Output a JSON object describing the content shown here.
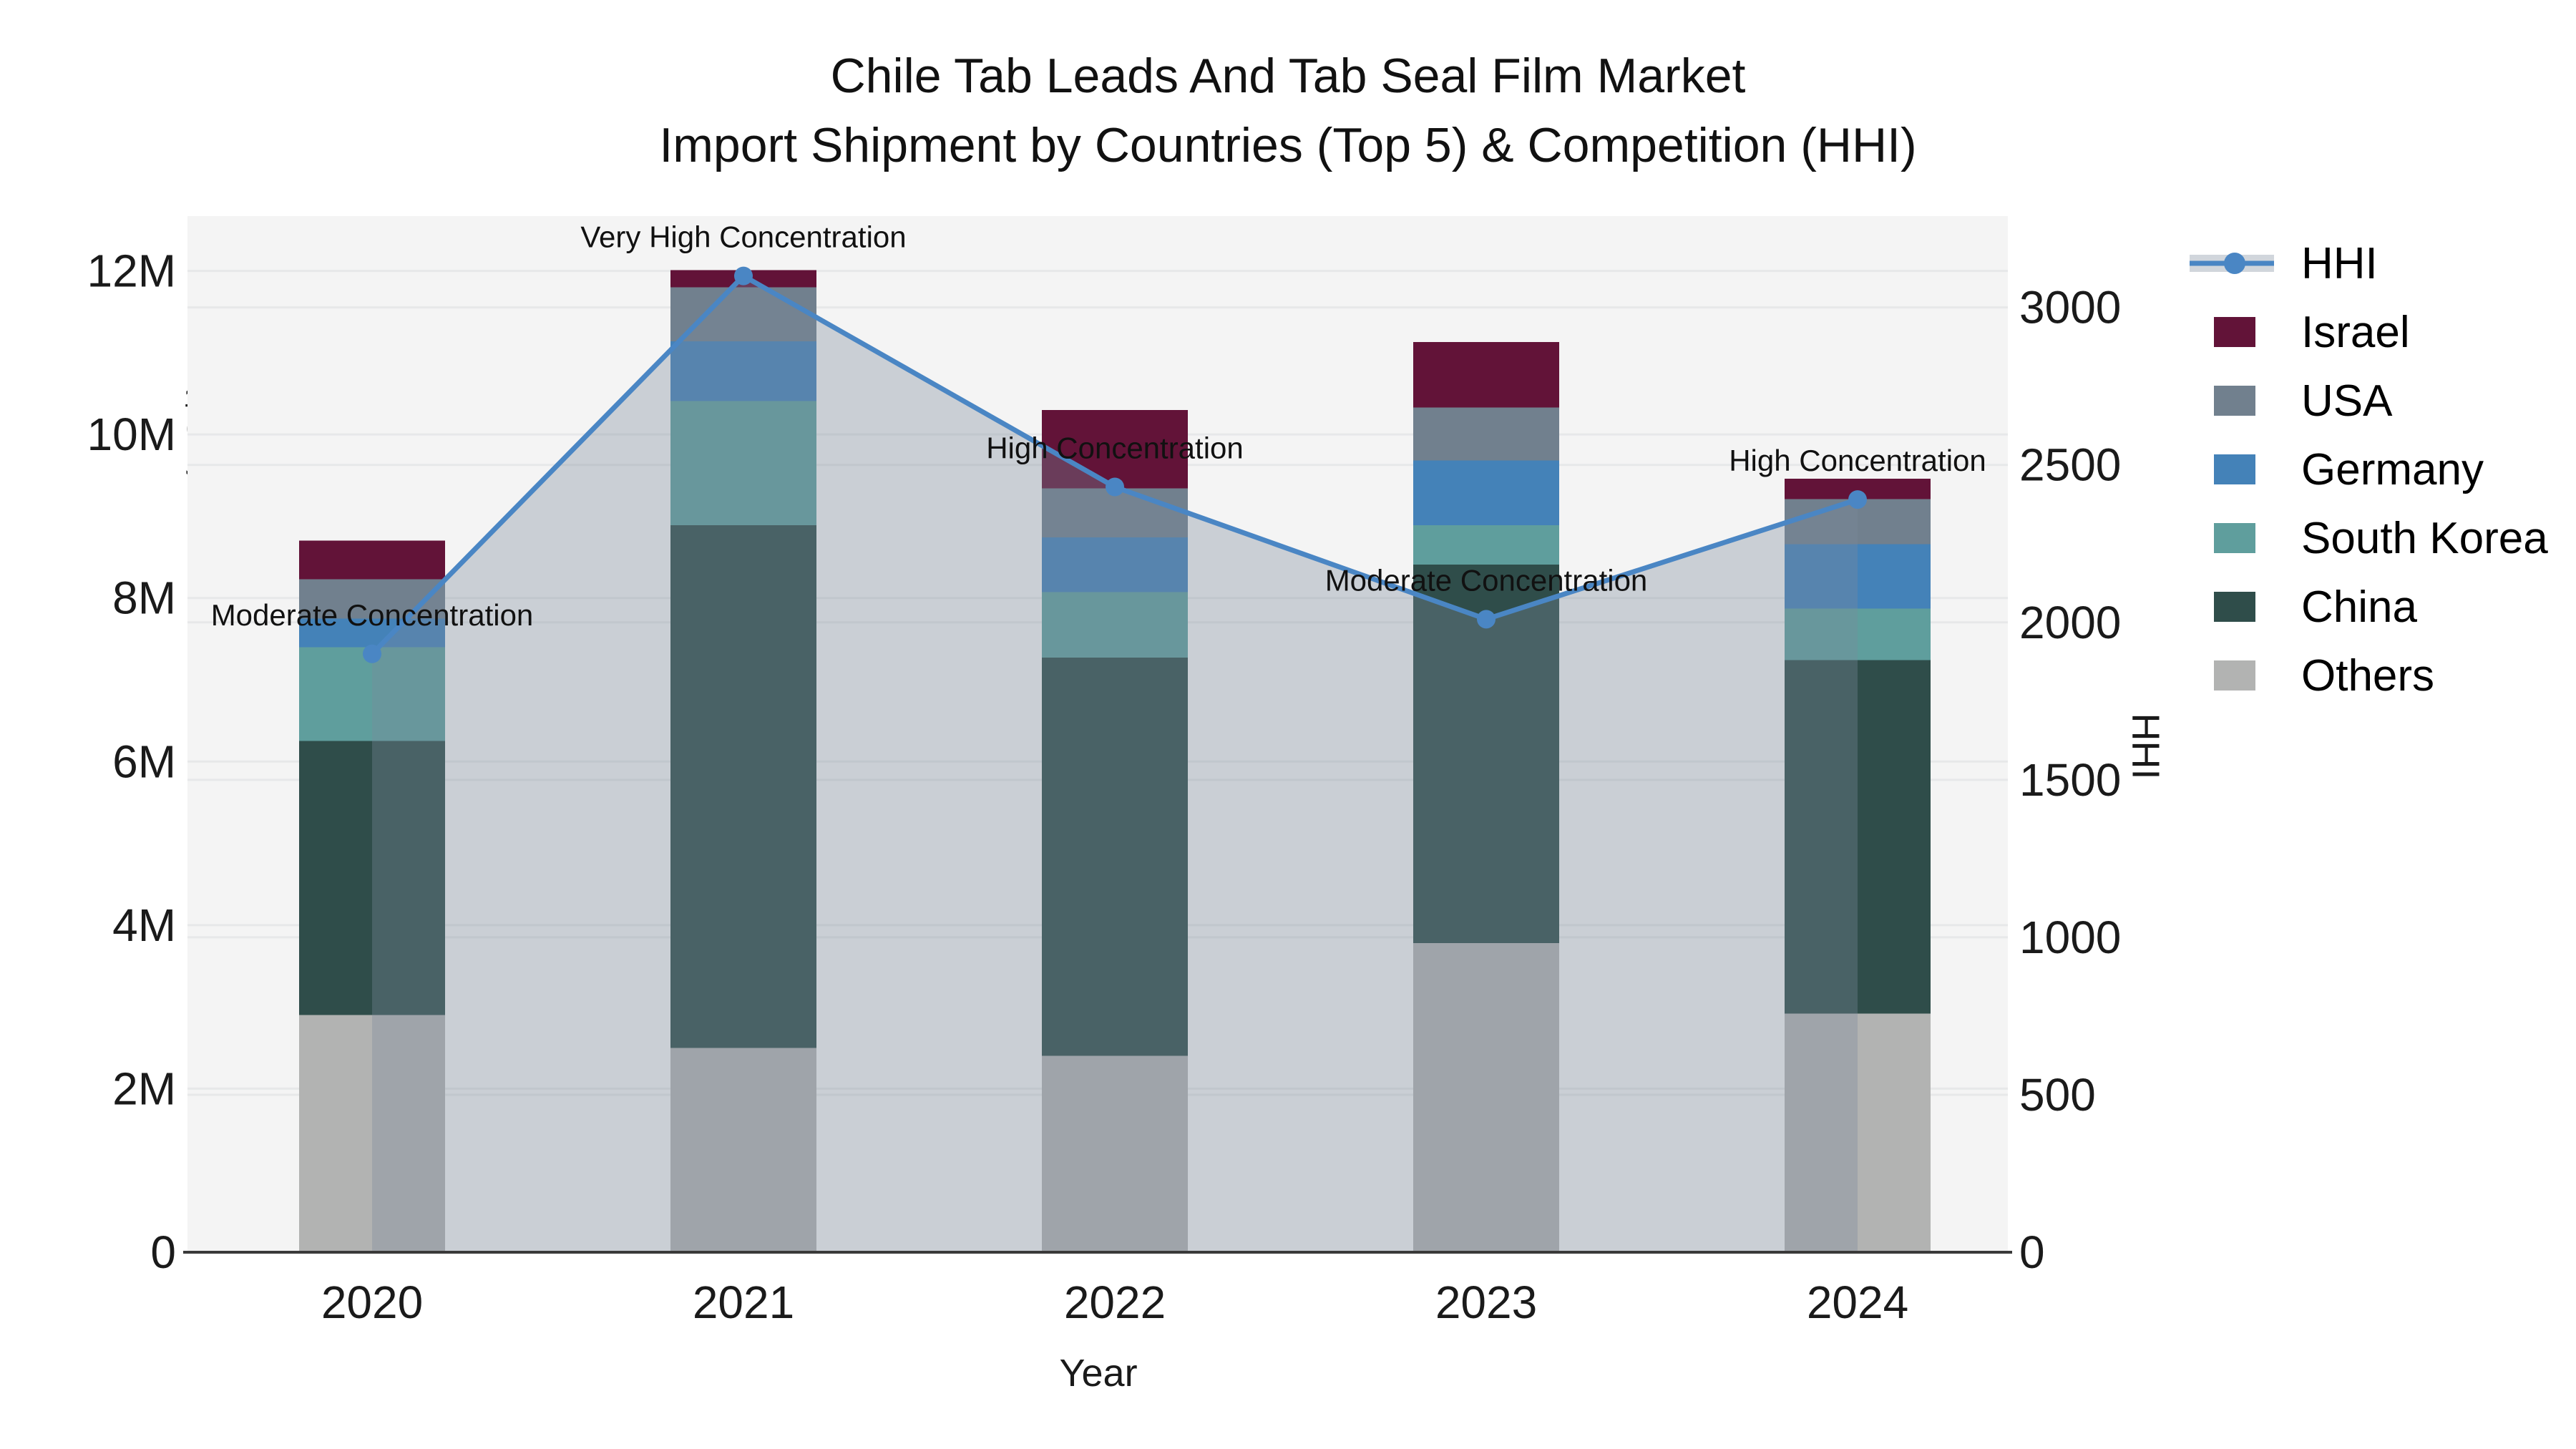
{
  "title": {
    "line1": "Chile Tab Leads And Tab Seal Film Market",
    "line2": "Import Shipment by Countries (Top 5) & Competition (HHI)"
  },
  "legend": {
    "items": [
      "HHI",
      "Israel",
      "USA",
      "Germany",
      "South Korea",
      "China",
      "Others"
    ]
  },
  "colors": {
    "plot_background": "#f4f4f4",
    "gridline": "#e7e8e9",
    "axis_line": "#3a3a3a",
    "tick_text": "#1a1a1a",
    "annotation_text": "#111111",
    "hhi_line": "#4a86c4",
    "hhi_area": "#7c8a9b",
    "israel": "#621338",
    "usa": "#71808e",
    "germany": "#4482b8",
    "south_korea": "#5f9e9d",
    "china": "#2f4d4a",
    "others": "#b2b3b2"
  },
  "chart_data": {
    "type": "bar",
    "bar_mode": "stacked",
    "combo_line": true,
    "categories": [
      "2020",
      "2021",
      "2022",
      "2023",
      "2024"
    ],
    "bar_value_unit": "US$ millions",
    "series": [
      {
        "name": "Others",
        "color": "#b2b3b2",
        "values": [
          2.9,
          2.5,
          2.4,
          3.78,
          2.92
        ]
      },
      {
        "name": "China",
        "color": "#2f4d4a",
        "values": [
          3.35,
          6.39,
          4.87,
          4.63,
          4.32
        ]
      },
      {
        "name": "South Korea",
        "color": "#5f9e9d",
        "values": [
          1.15,
          1.52,
          0.8,
          0.48,
          0.63
        ]
      },
      {
        "name": "Germany",
        "color": "#4482b8",
        "values": [
          0.35,
          0.73,
          0.67,
          0.79,
          0.79
        ]
      },
      {
        "name": "USA",
        "color": "#71808e",
        "values": [
          0.48,
          0.66,
          0.6,
          0.65,
          0.55
        ]
      },
      {
        "name": "Israel",
        "color": "#621338",
        "values": [
          0.47,
          0.21,
          0.96,
          0.8,
          0.25
        ]
      }
    ],
    "bar_totals_M": [
      8.7,
      12.01,
      10.3,
      11.13,
      9.46
    ],
    "line": {
      "name": "HHI",
      "color": "#4a86c4",
      "area_color": "#7c8a9b",
      "area_opacity": 0.35,
      "values": [
        1900,
        3100,
        2430,
        2010,
        2390
      ]
    },
    "annotations": [
      "Moderate Concentration",
      "Very High Concentration",
      "High Concentration",
      "Moderate Concentration",
      "High Concentration"
    ],
    "y_left": {
      "title": "TRADE VALUE (US$)",
      "tick_labels": [
        "0",
        "2M",
        "4M",
        "6M",
        "8M",
        "10M",
        "12M"
      ],
      "tick_values_M": [
        0,
        2,
        4,
        6,
        8,
        10,
        12
      ],
      "axis_max_M": 12.67
    },
    "y_right": {
      "title": "HHI",
      "tick_labels": [
        "0",
        "500",
        "1000",
        "1500",
        "2000",
        "2500",
        "3000"
      ],
      "tick_values": [
        0,
        500,
        1000,
        1500,
        2000,
        2500,
        3000
      ],
      "axis_max": 3290
    },
    "x": {
      "title": "Year"
    },
    "grid": true,
    "legend_position": "right"
  }
}
